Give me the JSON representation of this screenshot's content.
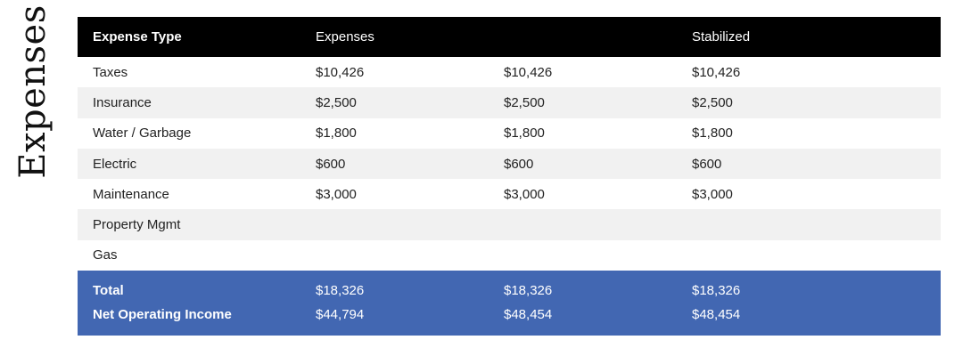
{
  "side_title": "Expenses",
  "header": {
    "col0": "Expense Type",
    "col1": "Expenses",
    "col2": "",
    "col3": "Stabilized"
  },
  "rows": [
    {
      "type": "Taxes",
      "v1": "$10,426",
      "v2": "$10,426",
      "v3": "$10,426"
    },
    {
      "type": "Insurance",
      "v1": "$2,500",
      "v2": "$2,500",
      "v3": "$2,500"
    },
    {
      "type": "Water / Garbage",
      "v1": "$1,800",
      "v2": "$1,800",
      "v3": "$1,800"
    },
    {
      "type": "Electric",
      "v1": "$600",
      "v2": "$600",
      "v3": "$600"
    },
    {
      "type": "Maintenance",
      "v1": "$3,000",
      "v2": "$3,000",
      "v3": "$3,000"
    },
    {
      "type": "Property Mgmt",
      "v1": "",
      "v2": "",
      "v3": ""
    },
    {
      "type": "Gas",
      "v1": "",
      "v2": "",
      "v3": ""
    }
  ],
  "total": {
    "label": "Total",
    "v1": "$18,326",
    "v2": "$18,326",
    "v3": "$18,326"
  },
  "noi": {
    "label": "Net Operating Income",
    "v1": "$44,794",
    "v2": "$48,454",
    "v3": "$48,454"
  },
  "colors": {
    "header_bg": "#000000",
    "footer_bg": "#4267b2",
    "alt_row_bg": "#f1f1f1"
  }
}
